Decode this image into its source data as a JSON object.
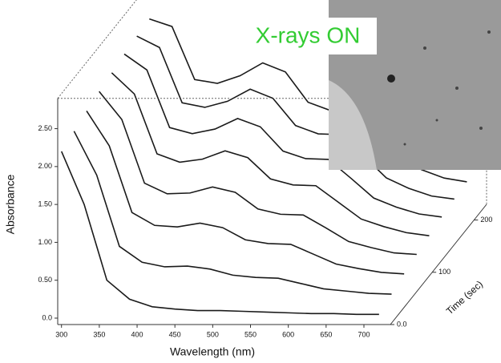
{
  "chart_data": {
    "type": "waterfall",
    "annotation": "X-rays ON",
    "y_label": "Absorbance",
    "x_label": "Wavelength (nm)",
    "z_label": "Time (sec)",
    "x": [
      300,
      330,
      360,
      390,
      420,
      450,
      480,
      510,
      540,
      570,
      600,
      630,
      660,
      690,
      720
    ],
    "color": "#1a1a1a",
    "series": [
      {
        "time": 210,
        "values": [
          2.5,
          2.4,
          1.7,
          1.65,
          1.75,
          1.92,
          1.8,
          1.4,
          1.29,
          1.28,
          0.97,
          0.66,
          0.51,
          0.4,
          0.35
        ]
      },
      {
        "time": 180,
        "values": [
          2.48,
          2.33,
          1.6,
          1.54,
          1.62,
          1.78,
          1.66,
          1.3,
          1.19,
          1.18,
          0.9,
          0.61,
          0.47,
          0.37,
          0.33
        ]
      },
      {
        "time": 150,
        "values": [
          2.45,
          2.24,
          1.48,
          1.4,
          1.46,
          1.6,
          1.49,
          1.17,
          1.07,
          1.06,
          0.81,
          0.55,
          0.43,
          0.34,
          0.3
        ]
      },
      {
        "time": 120,
        "values": [
          2.41,
          2.13,
          1.34,
          1.23,
          1.27,
          1.38,
          1.29,
          1.01,
          0.93,
          0.92,
          0.7,
          0.48,
          0.38,
          0.3,
          0.26
        ]
      },
      {
        "time": 90,
        "values": [
          2.37,
          2.0,
          1.16,
          1.02,
          1.03,
          1.11,
          1.04,
          0.82,
          0.75,
          0.74,
          0.57,
          0.39,
          0.31,
          0.24,
          0.22
        ]
      },
      {
        "time": 60,
        "values": [
          2.32,
          1.86,
          0.98,
          0.81,
          0.79,
          0.84,
          0.78,
          0.62,
          0.57,
          0.56,
          0.43,
          0.3,
          0.24,
          0.19,
          0.17
        ]
      },
      {
        "time": 30,
        "values": [
          2.26,
          1.68,
          0.74,
          0.53,
          0.47,
          0.48,
          0.44,
          0.36,
          0.33,
          0.32,
          0.25,
          0.18,
          0.15,
          0.12,
          0.11
        ]
      },
      {
        "time": 0,
        "values": [
          2.2,
          1.5,
          0.5,
          0.25,
          0.15,
          0.12,
          0.1,
          0.1,
          0.09,
          0.08,
          0.07,
          0.06,
          0.06,
          0.05,
          0.05
        ]
      }
    ],
    "xlim": [
      295,
      735
    ],
    "xticks": [
      300,
      350,
      400,
      450,
      500,
      550,
      600,
      650,
      700
    ],
    "ylim": [
      -0.05,
      2.9
    ],
    "yticks": [
      {
        "value": 0,
        "label": "0.0"
      },
      {
        "value": 0.5,
        "label": "0.50"
      },
      {
        "value": 1,
        "label": "1.00"
      },
      {
        "value": 1.5,
        "label": "1.50"
      },
      {
        "value": 2,
        "label": "2.00"
      },
      {
        "value": 2.5,
        "label": "2.50"
      }
    ],
    "zlim": [
      0,
      230
    ],
    "zticks": [
      {
        "value": 0,
        "label": "0.0"
      },
      100,
      200
    ]
  }
}
